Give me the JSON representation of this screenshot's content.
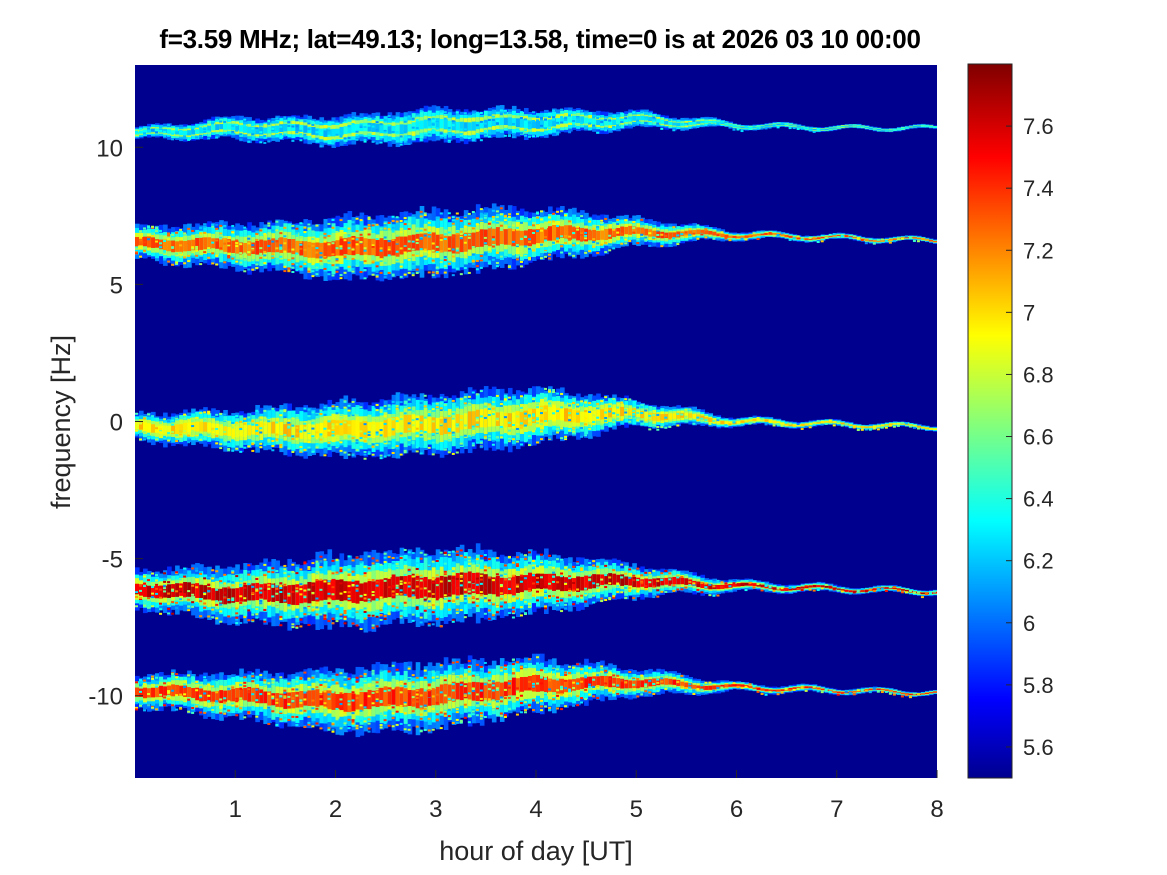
{
  "figure": {
    "title": "f=3.59 MHz;  lat=49.13; long=13.58, time=0 is at 2026 03 10 00:00"
  },
  "chart_data": {
    "type": "heatmap",
    "title": "f=3.59 MHz;  lat=49.13; long=13.58, time=0 is at 2026 03 10 00:00",
    "xlabel": "hour of day [UT]",
    "ylabel": "frequency [Hz]",
    "xlim": [
      0,
      8
    ],
    "ylim": [
      -13,
      13
    ],
    "x_ticks": [
      1,
      2,
      3,
      4,
      5,
      6,
      7,
      8
    ],
    "y_ticks": [
      10,
      5,
      0,
      -5,
      -10
    ],
    "x_tick_labels": [
      "1",
      "2",
      "3",
      "4",
      "5",
      "6",
      "7",
      "8"
    ],
    "y_tick_labels": [
      "10",
      "5",
      "0",
      "-5",
      "-10"
    ],
    "colormap": "jet",
    "background_color": "#00008f",
    "colorbar": {
      "range": [
        5.5,
        7.8
      ],
      "ticks": [
        5.6,
        5.8,
        6.0,
        6.2,
        6.4,
        6.6,
        6.8,
        7.0,
        7.2,
        7.4,
        7.6
      ],
      "tick_labels": [
        "5.6",
        "5.8",
        "6",
        "6.2",
        "6.4",
        "6.6",
        "6.8",
        "7",
        "7.2",
        "7.4",
        "7.6"
      ]
    },
    "bands": [
      {
        "name": "",
        "center_hz": 10.6,
        "center_profile": {
          "x": [
            0,
            1,
            2,
            3,
            4,
            5,
            6,
            7,
            8
          ],
          "y": [
            10.5,
            10.7,
            10.6,
            10.8,
            10.9,
            11.0,
            10.8,
            10.7,
            10.7
          ]
        },
        "width_profile": {
          "x": [
            0,
            1,
            2,
            3,
            4,
            5,
            6,
            7,
            8
          ],
          "y": [
            0.2,
            0.4,
            0.5,
            0.6,
            0.5,
            0.3,
            0.1,
            0.08,
            0.06
          ]
        },
        "peak_intensity": 6.3
      },
      {
        "name": "",
        "center_hz": 6.6,
        "center_profile": {
          "x": [
            0,
            1,
            2,
            3,
            4,
            5,
            6,
            7,
            8
          ],
          "y": [
            6.5,
            6.4,
            6.3,
            6.5,
            6.8,
            6.9,
            6.8,
            6.7,
            6.6
          ]
        },
        "width_profile": {
          "x": [
            0,
            1,
            2,
            3,
            4,
            5,
            6,
            7,
            8
          ],
          "y": [
            0.6,
            0.8,
            1.1,
            1.2,
            1.0,
            0.5,
            0.15,
            0.1,
            0.08
          ]
        },
        "peak_intensity": 7.3
      },
      {
        "name": "",
        "center_hz": -0.1,
        "center_profile": {
          "x": [
            0,
            1,
            2,
            3,
            4,
            5,
            6,
            7,
            8
          ],
          "y": [
            -0.2,
            -0.3,
            -0.3,
            -0.1,
            0.2,
            0.3,
            0.0,
            -0.1,
            -0.2
          ]
        },
        "width_profile": {
          "x": [
            0,
            1,
            2,
            3,
            4,
            5,
            6,
            7,
            8
          ],
          "y": [
            0.5,
            0.7,
            1.0,
            1.1,
            1.0,
            0.5,
            0.15,
            0.1,
            0.08
          ]
        },
        "peak_intensity": 7.0
      },
      {
        "name": "",
        "center_hz": -6.1,
        "center_profile": {
          "x": [
            0,
            1,
            2,
            3,
            4,
            5,
            6,
            7,
            8
          ],
          "y": [
            -6.1,
            -6.3,
            -6.2,
            -6.0,
            -5.9,
            -5.8,
            -6.0,
            -6.1,
            -6.2
          ]
        },
        "width_profile": {
          "x": [
            0,
            1,
            2,
            3,
            4,
            5,
            6,
            7,
            8
          ],
          "y": [
            0.7,
            1.0,
            1.3,
            1.4,
            1.1,
            0.6,
            0.2,
            0.12,
            0.1
          ]
        },
        "peak_intensity": 7.6
      },
      {
        "name": "",
        "center_hz": -9.9,
        "center_profile": {
          "x": [
            0,
            1,
            2,
            3,
            4,
            5,
            6,
            7,
            8
          ],
          "y": [
            -9.8,
            -10.0,
            -10.2,
            -10.0,
            -9.6,
            -9.5,
            -9.7,
            -9.8,
            -9.9
          ]
        },
        "width_profile": {
          "x": [
            0,
            1,
            2,
            3,
            4,
            5,
            6,
            7,
            8
          ],
          "y": [
            0.6,
            0.8,
            1.1,
            1.2,
            1.0,
            0.5,
            0.15,
            0.1,
            0.08
          ]
        },
        "peak_intensity": 7.4
      }
    ]
  }
}
